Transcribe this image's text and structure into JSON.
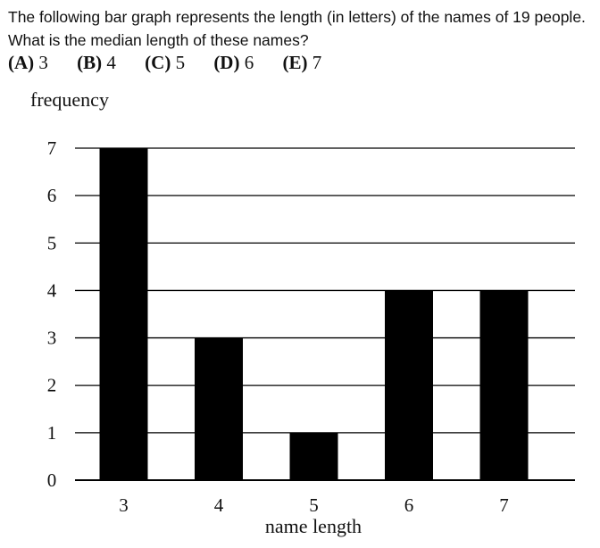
{
  "question": {
    "text": "The following bar graph represents the length (in letters) of the names of 19 people. What is the median length of these names?",
    "choices": [
      {
        "letter": "(A)",
        "value": "3"
      },
      {
        "letter": "(B)",
        "value": "4"
      },
      {
        "letter": "(C)",
        "value": "5"
      },
      {
        "letter": "(D)",
        "value": "6"
      },
      {
        "letter": "(E)",
        "value": "7"
      }
    ]
  },
  "chart_data": {
    "type": "bar",
    "categories": [
      "3",
      "4",
      "5",
      "6",
      "7"
    ],
    "values": [
      7,
      3,
      1,
      4,
      4
    ],
    "xlabel": "name length",
    "ylabel": "frequency",
    "ylim": [
      0,
      7
    ],
    "yticks": [
      "0",
      "1",
      "2",
      "3",
      "4",
      "5",
      "6",
      "7"
    ],
    "grid": true,
    "bar_color": "#000000",
    "grid_color": "#000000"
  }
}
